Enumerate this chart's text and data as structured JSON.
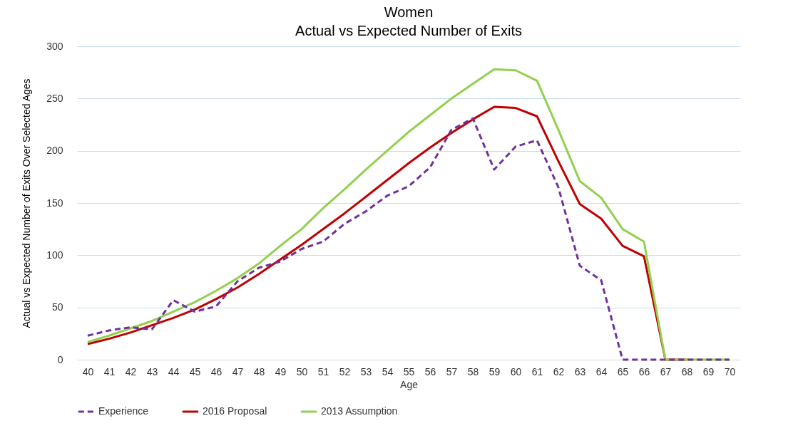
{
  "chart_data": {
    "type": "line",
    "title": [
      "Women",
      "Actual vs Expected Number of Exits"
    ],
    "xlabel": "Age",
    "ylabel": "Actual vs Expected Number of Exits Over Selected Ages",
    "categories": [
      "40",
      "41",
      "42",
      "43",
      "44",
      "45",
      "46",
      "47",
      "48",
      "49",
      "50",
      "51",
      "52",
      "53",
      "54",
      "55",
      "56",
      "57",
      "58",
      "59",
      "60",
      "61",
      "62",
      "63",
      "64",
      "65",
      "66",
      "67",
      "68",
      "69",
      "70"
    ],
    "series": [
      {
        "name": "Experience",
        "color": "#7030a0",
        "line_style": "dashed",
        "values": [
          23,
          28,
          31,
          29,
          57,
          46,
          51,
          75,
          88,
          94,
          106,
          113,
          130,
          142,
          157,
          166,
          184,
          220,
          231,
          182,
          204,
          210,
          165,
          90,
          76,
          0,
          0,
          0,
          0,
          0,
          0
        ]
      },
      {
        "name": "2016 Proposal",
        "color": "#c00000",
        "line_style": "solid",
        "values": [
          15,
          20,
          26,
          33,
          40,
          48,
          58,
          69,
          82,
          96,
          110,
          125,
          140,
          156,
          172,
          188,
          203,
          217,
          230,
          242,
          241,
          233,
          190,
          149,
          135,
          109,
          99,
          0,
          0,
          null,
          null
        ]
      },
      {
        "name": "2013 Assumption",
        "color": "#92d050",
        "line_style": "solid",
        "values": [
          17,
          23,
          30,
          37,
          46,
          55,
          66,
          78,
          92,
          109,
          125,
          145,
          163,
          182,
          200,
          218,
          234,
          250,
          264,
          278,
          277,
          267,
          220,
          171,
          155,
          125,
          113,
          0,
          0,
          0,
          0
        ]
      }
    ],
    "ylim": [
      0,
      300
    ],
    "yticks": [
      0,
      50,
      100,
      150,
      200,
      250,
      300
    ],
    "grid": "y",
    "legend": "bottom"
  }
}
